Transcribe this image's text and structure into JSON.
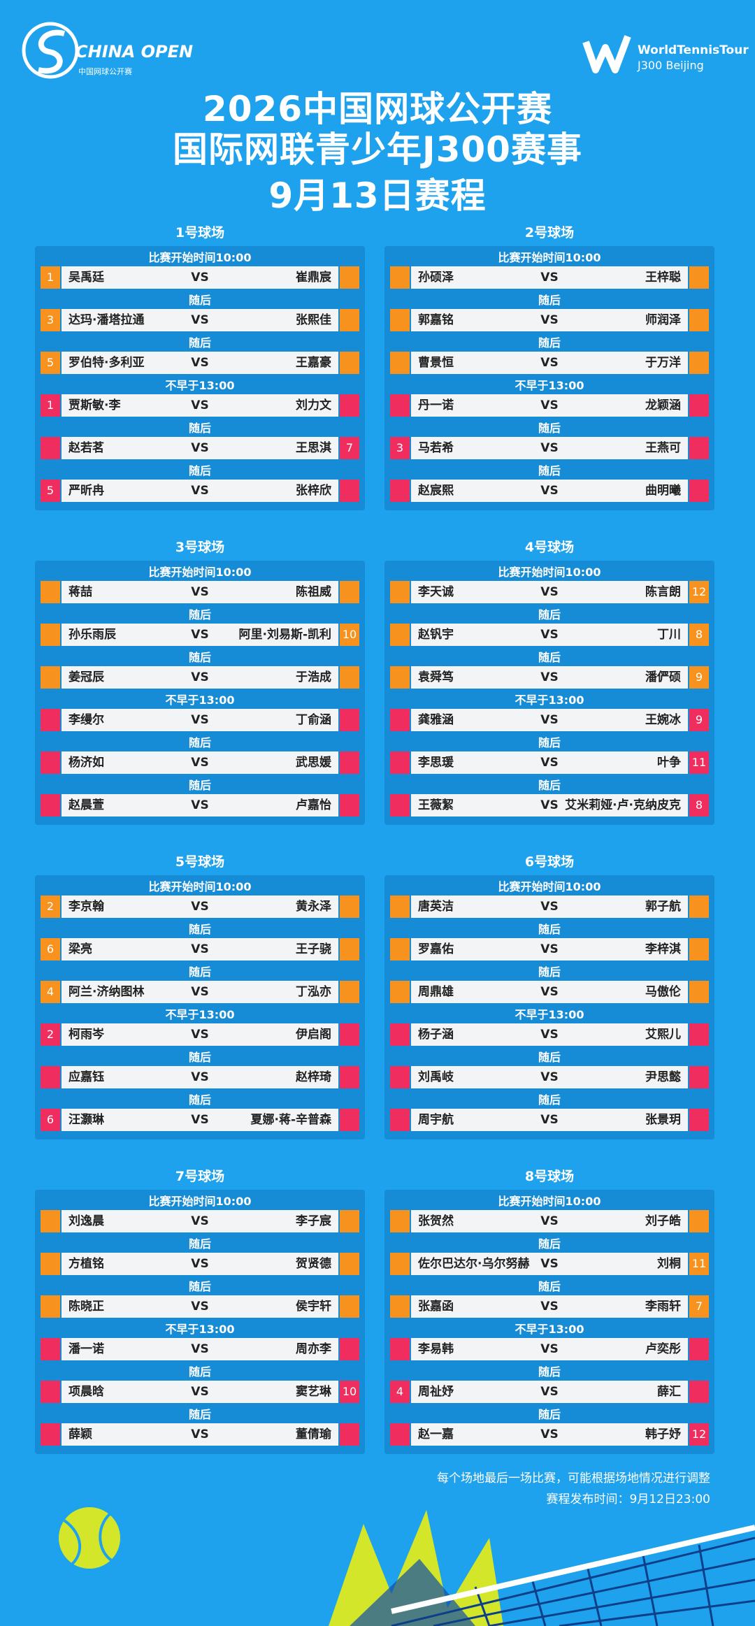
{
  "header": {
    "logo_left": "CHINA OPEN",
    "logo_left_sub": "中国网球公开赛",
    "logo_right": "WorldTennisTour",
    "logo_right_sub": "J300 Beijing",
    "title_1": "2026中国网球公开赛",
    "title_2": "国际网联青少年J300赛事",
    "title_3": "9月13日赛程"
  },
  "vs": "VS",
  "courts": [
    {
      "name": "1号球场",
      "matches": [
        {
          "note": "比赛开始时间10:00",
          "p1": "吴禹廷",
          "seed1": 1,
          "p2": "崔鼎宸",
          "seed2": null,
          "color": "#f7921e"
        },
        {
          "note": "随后",
          "p1": "达玛·潘塔拉通",
          "seed1": 3,
          "p2": "张熙佳",
          "seed2": null,
          "color": "#f7921e"
        },
        {
          "note": "随后",
          "p1": "罗伯特·多利亚",
          "seed1": 5,
          "p2": "王嘉豪",
          "seed2": null,
          "color": "#f7921e"
        },
        {
          "note": "不早于13:00",
          "p1": "贾斯敏·李",
          "seed1": 1,
          "p2": "刘力文",
          "seed2": null,
          "color": "#ef2d5e"
        },
        {
          "note": "随后",
          "p1": "赵若茗",
          "seed1": null,
          "p2": "王思淇",
          "seed2": 7,
          "color": "#ef2d5e"
        },
        {
          "note": "随后",
          "p1": "严昕冉",
          "seed1": 5,
          "p2": "张梓欣",
          "seed2": null,
          "color": "#ef2d5e"
        }
      ]
    },
    {
      "name": "2号球场",
      "matches": [
        {
          "note": "比赛开始时间10:00",
          "p1": "孙硕泽",
          "seed1": null,
          "p2": "王梓聪",
          "seed2": null,
          "color": "#f7921e"
        },
        {
          "note": "随后",
          "p1": "郭嘉铭",
          "seed1": null,
          "p2": "师润泽",
          "seed2": null,
          "color": "#f7921e"
        },
        {
          "note": "随后",
          "p1": "曹景恒",
          "seed1": null,
          "p2": "于万洋",
          "seed2": null,
          "color": "#f7921e"
        },
        {
          "note": "不早于13:00",
          "p1": "丹一诺",
          "seed1": null,
          "p2": "龙颖涵",
          "seed2": null,
          "color": "#ef2d5e"
        },
        {
          "note": "随后",
          "p1": "马若希",
          "seed1": 3,
          "p2": "王燕可",
          "seed2": null,
          "color": "#ef2d5e"
        },
        {
          "note": "随后",
          "p1": "赵宸熙",
          "seed1": null,
          "p2": "曲明曦",
          "seed2": null,
          "color": "#ef2d5e"
        }
      ]
    },
    {
      "name": "3号球场",
      "matches": [
        {
          "note": "比赛开始时间10:00",
          "p1": "蒋喆",
          "seed1": null,
          "p2": "陈祖威",
          "seed2": null,
          "color": "#f7921e"
        },
        {
          "note": "随后",
          "p1": "孙乐雨辰",
          "seed1": null,
          "p2": "阿里·刘易斯-凯利",
          "seed2": 10,
          "color": "#f7921e"
        },
        {
          "note": "随后",
          "p1": "姜冠辰",
          "seed1": null,
          "p2": "于浩成",
          "seed2": null,
          "color": "#f7921e"
        },
        {
          "note": "不早于13:00",
          "p1": "李缦尔",
          "seed1": null,
          "p2": "丁俞涵",
          "seed2": null,
          "color": "#ef2d5e"
        },
        {
          "note": "随后",
          "p1": "杨济如",
          "seed1": null,
          "p2": "武思媛",
          "seed2": null,
          "color": "#ef2d5e"
        },
        {
          "note": "随后",
          "p1": "赵晨萱",
          "seed1": null,
          "p2": "卢嘉怡",
          "seed2": null,
          "color": "#ef2d5e"
        }
      ]
    },
    {
      "name": "4号球场",
      "matches": [
        {
          "note": "比赛开始时间10:00",
          "p1": "李天诚",
          "seed1": null,
          "p2": "陈言朗",
          "seed2": 12,
          "color": "#f7921e"
        },
        {
          "note": "随后",
          "p1": "赵钒宇",
          "seed1": null,
          "p2": "丁川",
          "seed2": 8,
          "color": "#f7921e"
        },
        {
          "note": "随后",
          "p1": "袁舜笃",
          "seed1": null,
          "p2": "潘俨硕",
          "seed2": 9,
          "color": "#f7921e"
        },
        {
          "note": "不早于13:00",
          "p1": "龚雅涵",
          "seed1": null,
          "p2": "王婉冰",
          "seed2": 9,
          "color": "#ef2d5e"
        },
        {
          "note": "随后",
          "p1": "李思瑗",
          "seed1": null,
          "p2": "叶争",
          "seed2": 11,
          "color": "#ef2d5e"
        },
        {
          "note": "随后",
          "p1": "王薇絜",
          "seed1": null,
          "p2": "艾米莉娅·卢·克纳皮克",
          "seed2": 8,
          "color": "#ef2d5e"
        }
      ]
    },
    {
      "name": "5号球场",
      "matches": [
        {
          "note": "比赛开始时间10:00",
          "p1": "李京翰",
          "seed1": 2,
          "p2": "黄永泽",
          "seed2": null,
          "color": "#f7921e"
        },
        {
          "note": "随后",
          "p1": "梁亮",
          "seed1": 6,
          "p2": "王子骁",
          "seed2": null,
          "color": "#f7921e"
        },
        {
          "note": "随后",
          "p1": "阿兰·济纳图林",
          "seed1": 4,
          "p2": "丁泓亦",
          "seed2": null,
          "color": "#f7921e"
        },
        {
          "note": "不早于13:00",
          "p1": "柯雨岑",
          "seed1": 2,
          "p2": "伊启阁",
          "seed2": null,
          "color": "#ef2d5e"
        },
        {
          "note": "随后",
          "p1": "应嘉钰",
          "seed1": null,
          "p2": "赵梓琦",
          "seed2": null,
          "color": "#ef2d5e"
        },
        {
          "note": "随后",
          "p1": "汪灏琳",
          "seed1": 6,
          "p2": "夏娜·蒋-辛普森",
          "seed2": null,
          "color": "#ef2d5e"
        }
      ]
    },
    {
      "name": "6号球场",
      "matches": [
        {
          "note": "比赛开始时间10:00",
          "p1": "唐英洁",
          "seed1": null,
          "p2": "郭子航",
          "seed2": null,
          "color": "#f7921e"
        },
        {
          "note": "随后",
          "p1": "罗嘉佑",
          "seed1": null,
          "p2": "李梓淇",
          "seed2": null,
          "color": "#f7921e"
        },
        {
          "note": "随后",
          "p1": "周鼎雄",
          "seed1": null,
          "p2": "马傲伦",
          "seed2": null,
          "color": "#f7921e"
        },
        {
          "note": "不早于13:00",
          "p1": "杨子涵",
          "seed1": null,
          "p2": "艾熙儿",
          "seed2": null,
          "color": "#ef2d5e"
        },
        {
          "note": "随后",
          "p1": "刘禹岐",
          "seed1": null,
          "p2": "尹思懿",
          "seed2": null,
          "color": "#ef2d5e"
        },
        {
          "note": "随后",
          "p1": "周宇航",
          "seed1": null,
          "p2": "张景玥",
          "seed2": null,
          "color": "#ef2d5e"
        }
      ]
    },
    {
      "name": "7号球场",
      "matches": [
        {
          "note": "比赛开始时间10:00",
          "p1": "刘逸晨",
          "seed1": null,
          "p2": "李子宸",
          "seed2": null,
          "color": "#f7921e"
        },
        {
          "note": "随后",
          "p1": "方植铭",
          "seed1": null,
          "p2": "贺贤德",
          "seed2": null,
          "color": "#f7921e"
        },
        {
          "note": "随后",
          "p1": "陈晓正",
          "seed1": null,
          "p2": "侯宇轩",
          "seed2": null,
          "color": "#f7921e"
        },
        {
          "note": "不早于13:00",
          "p1": "潘一诺",
          "seed1": null,
          "p2": "周亦李",
          "seed2": null,
          "color": "#ef2d5e"
        },
        {
          "note": "随后",
          "p1": "项晨晗",
          "seed1": null,
          "p2": "窦艺琳",
          "seed2": 10,
          "color": "#ef2d5e"
        },
        {
          "note": "随后",
          "p1": "薛颖",
          "seed1": null,
          "p2": "董倩瑜",
          "seed2": null,
          "color": "#ef2d5e"
        }
      ]
    },
    {
      "name": "8号球场",
      "matches": [
        {
          "note": "比赛开始时间10:00",
          "p1": "张贺然",
          "seed1": null,
          "p2": "刘子皓",
          "seed2": null,
          "color": "#f7921e"
        },
        {
          "note": "随后",
          "p1": "佐尔巴达尔·乌尔努赫",
          "seed1": null,
          "p2": "刘桐",
          "seed2": 11,
          "color": "#f7921e"
        },
        {
          "note": "随后",
          "p1": "张嘉函",
          "seed1": null,
          "p2": "李雨轩",
          "seed2": 7,
          "color": "#f7921e"
        },
        {
          "note": "不早于13:00",
          "p1": "李易韩",
          "seed1": null,
          "p2": "卢奕彤",
          "seed2": null,
          "color": "#ef2d5e"
        },
        {
          "note": "随后",
          "p1": "周祉妤",
          "seed1": 4,
          "p2": "薛汇",
          "seed2": null,
          "color": "#ef2d5e"
        },
        {
          "note": "随后",
          "p1": "赵一嘉",
          "seed1": null,
          "p2": "韩子妤",
          "seed2": 12,
          "color": "#ef2d5e"
        }
      ]
    }
  ],
  "footer": {
    "note": "每个场地最后一场比赛，可能根据场地情况进行调整",
    "published": "赛程发布时间：9月12日23:00"
  }
}
